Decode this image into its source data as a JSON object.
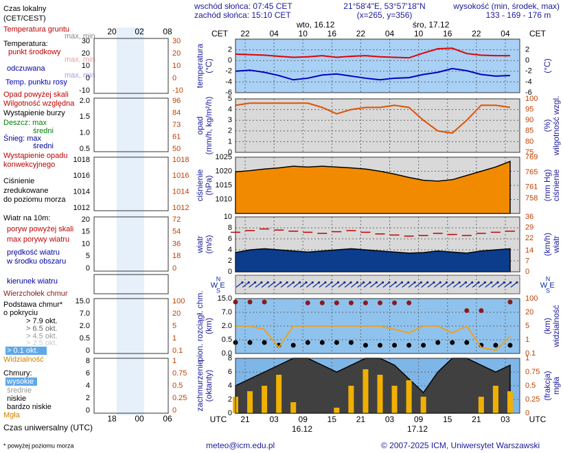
{
  "header": {
    "sunrise": "wschód słońca: 07:45 CET",
    "sunset": "zachód słońca: 15:10 CET",
    "coords": "21°58'4\"E, 53°57'18\"N",
    "grid": "(x=265, y=356)",
    "elevation_title": "wysokość (min, środek, max)",
    "elevation": "133 - 169 - 176 m",
    "cet": "CET",
    "utc": "UTC",
    "dates_top": [
      "wto, 16.12",
      "śro, 17.12"
    ],
    "dates_bottom": [
      "16.12",
      "17.12"
    ]
  },
  "compass": {
    "n": "N",
    "w": "W",
    "e": "E",
    "s": "S"
  },
  "legend": {
    "local_time": "Czas lokalny",
    "local_zone": "(CET/CEST)",
    "ground_temp": "Temperatura gruntu",
    "maxmin": "max, min",
    "temp": "Temperatura:",
    "feels": "odczuwana",
    "precip_over": "Opad powyżej skali",
    "storm": "Wystąpienie burzy",
    "rain_max": "Deszcz: max",
    "mean": "średni",
    "snow_max": "Śnieg: max",
    "conv1": "Wystąpienie opadu",
    "conv2": "konwekcyjnego",
    "press2": "zredukowane",
    "press3": "do poziomu morza",
    "wind": "Wiatr na 10m:",
    "gust_over": "poryw powyżej skali",
    "wind_mid": "w środku obszaru",
    "wind_dir": "kierunek wiatru",
    "base1": "Podstawa chmur*",
    "base2": "o pokryciu",
    "okt65": "> 6.5 okt.",
    "okt45": "> 4.5 okt.",
    "okt25": "> 2.5 okt.",
    "okt01": "> 0.1 okt.",
    "clouds": "Chmury:",
    "high": "wysokie",
    "mid": "średnie",
    "vlow": "bardzo niskie",
    "utc_time": "Czas uniwersalny (UTC)",
    "note": "* powyżej poziomu morza"
  },
  "mini": {
    "top_ticks": [
      "20",
      "02",
      "08"
    ],
    "bottom_ticks": [
      "18",
      "00",
      "06"
    ],
    "panels": [
      {
        "left": [
          "30",
          "20",
          "10",
          "0",
          "-10"
        ],
        "right": [
          "30",
          "20",
          "10",
          "0",
          "-10"
        ]
      },
      {
        "left": [
          "2.0",
          "1.5",
          "1.0",
          "0.5"
        ],
        "right": [
          "96",
          "84",
          "73",
          "61",
          "50"
        ]
      },
      {
        "left": [
          "1018",
          "1016",
          "1014",
          "1012"
        ],
        "right": [
          "1018",
          "1016",
          "1014",
          "1012"
        ]
      },
      {
        "left": [
          "20",
          "15",
          "10",
          "5",
          "0"
        ],
        "right": [
          "72",
          "54",
          "36",
          "18",
          "0"
        ]
      },
      {
        "left": [
          "15.0",
          "7.0",
          "2.0",
          "0.5",
          "0"
        ],
        "right": [
          "100",
          "20",
          "5",
          "1",
          "0.1"
        ]
      },
      {
        "left": [
          "8",
          "6",
          "4",
          "2",
          "0"
        ],
        "right": [
          "1",
          "0.75",
          "0.5",
          "0.25",
          "0"
        ]
      }
    ]
  },
  "footer": {
    "email": "meteo@icm.edu.pl",
    "copyright": "© 2007-2025 ICM, Uniwersytet Warszawski"
  },
  "chart_data": [
    {
      "type": "line",
      "ylabel": [
        "temperatura",
        "(°C)"
      ],
      "y2label": [
        "(°C)"
      ],
      "background": "#a9d0f5",
      "x": [
        19,
        22,
        25,
        28,
        31,
        34,
        37,
        40,
        43,
        46,
        49,
        52,
        55,
        58,
        61,
        64,
        67,
        70,
        73,
        76
      ],
      "xlim": [
        19,
        78
      ],
      "xticks": [
        {
          "value": 21,
          "label": "22"
        },
        {
          "value": 27,
          "label": "04"
        },
        {
          "value": 33,
          "label": "10"
        },
        {
          "value": 39,
          "label": "16"
        },
        {
          "value": 45,
          "label": "22"
        },
        {
          "value": 51,
          "label": "04"
        },
        {
          "value": 57,
          "label": "10"
        },
        {
          "value": 63,
          "label": "16"
        },
        {
          "value": 69,
          "label": "22"
        },
        {
          "value": 75,
          "label": "04"
        }
      ],
      "ylim": [
        -6,
        4
      ],
      "yticks": [
        -6,
        -4,
        -2,
        0,
        2
      ],
      "grid": true,
      "series": [
        {
          "name": "punkt środkowy",
          "type": "line",
          "color": "#e00000",
          "values": [
            1.2,
            1.1,
            1.0,
            0.8,
            0.6,
            0.7,
            0.9,
            0.6,
            0.8,
            0.9,
            0.7,
            0.6,
            0.5,
            1.4,
            2.2,
            2.3,
            1.3,
            1.0,
            0.9,
            0.9
          ]
        },
        {
          "name": "Temp. punktu rosy",
          "type": "line",
          "color": "#0000c0",
          "values": [
            -2.0,
            -1.8,
            -2.2,
            -2.8,
            -3.6,
            -3.3,
            -2.7,
            -2.5,
            -2.9,
            -3.3,
            -3.6,
            -3.3,
            -3.2,
            -2.6,
            -2.2,
            -1.5,
            -1.9,
            -2.6,
            -2.9,
            -2.8
          ]
        }
      ]
    },
    {
      "type": "line",
      "ylabel": [
        "opad",
        "(mm/h, kg/m²/h)"
      ],
      "y2label": [
        "(%)",
        "wilgotność wzgl."
      ],
      "background": "#d9d9d9",
      "x": [
        19,
        22,
        25,
        28,
        31,
        34,
        37,
        40,
        43,
        46,
        49,
        52,
        55,
        58,
        61,
        64,
        67,
        70,
        73,
        76
      ],
      "xlim": [
        19,
        78
      ],
      "ylim": [
        0,
        5
      ],
      "yticks": [
        0,
        1,
        2,
        3,
        4,
        5
      ],
      "y2lim": [
        75,
        100
      ],
      "y2ticks": [
        75,
        80,
        85,
        90,
        95,
        100
      ],
      "grid": true,
      "series": [
        {
          "name": "Wilgotność względna",
          "type": "line",
          "axis": "y2",
          "color": "#e05000",
          "values": [
            97,
            98,
            98,
            98,
            98,
            98,
            96,
            93,
            95,
            96,
            96,
            97,
            96,
            90,
            85,
            84,
            90,
            97,
            97,
            96
          ]
        }
      ]
    },
    {
      "type": "area",
      "ylabel": [
        "ciśnienie",
        "(hPa)"
      ],
      "y2label": [
        "(mm Hg)",
        "ciśnienie"
      ],
      "background": "#d9d9d9",
      "x": [
        19,
        22,
        25,
        28,
        31,
        34,
        37,
        40,
        43,
        46,
        49,
        52,
        55,
        58,
        61,
        64,
        67,
        70,
        73,
        76
      ],
      "xlim": [
        19,
        78
      ],
      "ylim": [
        1005,
        1025
      ],
      "yticks": [
        1010,
        1015,
        1020,
        1025
      ],
      "y2lim": [
        754,
        769
      ],
      "y2ticks": [
        758,
        761,
        765,
        769
      ],
      "grid": true,
      "series": [
        {
          "name": "Ciśnienie",
          "type": "area",
          "color": "#f28a00",
          "values": [
            1019.8,
            1020.2,
            1020.8,
            1021.2,
            1021.8,
            1021.5,
            1021.8,
            1021.5,
            1021.2,
            1020.8,
            1020.0,
            1019.0,
            1017.8,
            1016.8,
            1016.5,
            1017.0,
            1018.5,
            1020.0,
            1021.5,
            1023.5
          ]
        }
      ]
    },
    {
      "type": "area",
      "ylabel": [
        "wiatr",
        "(m/s)"
      ],
      "y2label": [
        "(km/h)",
        "wiatr"
      ],
      "background": "#d9d9d9",
      "x": [
        19,
        22,
        25,
        28,
        31,
        34,
        37,
        40,
        43,
        46,
        49,
        52,
        55,
        58,
        61,
        64,
        67,
        70,
        73,
        76
      ],
      "xlim": [
        19,
        78
      ],
      "ylim": [
        0,
        10
      ],
      "yticks": [
        0,
        2,
        4,
        6,
        8,
        10
      ],
      "y2lim": [
        0,
        36
      ],
      "y2ticks": [
        0,
        7,
        14,
        22,
        29,
        36
      ],
      "grid": true,
      "series": [
        {
          "name": "prędkość wiatru",
          "type": "area",
          "color": "#0c3c8c",
          "values": [
            3.5,
            4.0,
            4.2,
            4.0,
            3.8,
            3.6,
            3.8,
            4.0,
            4.2,
            4.0,
            3.8,
            3.6,
            3.4,
            3.5,
            3.8,
            3.6,
            3.4,
            3.8,
            4.0,
            4.2
          ]
        },
        {
          "name": "max porywy wiatru",
          "type": "dash",
          "color": "#c00000",
          "values": [
            7.2,
            7.5,
            7.8,
            7.6,
            7.4,
            7.2,
            7.0,
            7.3,
            7.5,
            7.2,
            6.9,
            6.7,
            6.5,
            6.6,
            7.0,
            6.8,
            6.6,
            7.0,
            7.2,
            7.4
          ]
        }
      ]
    },
    {
      "type": "scatter",
      "ylabel": [
        "pion. rozciągł. chm.",
        "(km)"
      ],
      "y2label": [
        "(km)",
        "widzialność"
      ],
      "background": "#8fc3ee",
      "x": [
        19,
        22,
        25,
        28,
        31,
        34,
        37,
        40,
        43,
        46,
        49,
        52,
        55,
        58,
        61,
        64,
        67,
        70,
        73,
        76
      ],
      "xlim": [
        19,
        78
      ],
      "ylim": [
        0,
        15
      ],
      "yscale": "ticks",
      "yticks": [
        {
          "value": 0,
          "label": "0.0"
        },
        {
          "value": 0.5,
          "label": "0.5"
        },
        {
          "value": 2,
          "label": "2.0"
        },
        {
          "value": 7,
          "label": "7.0"
        },
        {
          "value": 15,
          "label": "15.0"
        }
      ],
      "y2lim": [
        0.1,
        100
      ],
      "y2scale": "ticks",
      "y2ticks": [
        0.1,
        1,
        5,
        20,
        100
      ],
      "grid": true,
      "series": [
        {
          "name": "Wierzchołek chmur",
          "type": "scatter",
          "color": "#8b1a1a",
          "values": [
            13,
            13,
            13,
            null,
            null,
            12.5,
            12.5,
            12.5,
            12.5,
            12.5,
            12.5,
            12.5,
            12.5,
            null,
            null,
            null,
            8,
            8,
            null,
            13
          ]
        },
        {
          "name": "> 7.9 okt.",
          "type": "scatter",
          "color": "#000000",
          "values": [
            0.4,
            0.4,
            0.4,
            0.3,
            0.3,
            0.4,
            0.4,
            0.4,
            0.4,
            0.3,
            0.3,
            0.3,
            0.3,
            0.3,
            0.4,
            0.4,
            0.4,
            0.3,
            0.3,
            0.3
          ]
        },
        {
          "name": "Widzialność",
          "type": "line",
          "axis": "y2",
          "color": "#f0a020",
          "values": [
            5,
            5,
            4,
            0.5,
            5,
            5,
            5,
            5,
            5,
            5,
            5,
            4,
            3,
            5,
            5,
            3,
            5,
            0.5,
            0.3,
            2
          ]
        }
      ]
    },
    {
      "type": "area",
      "ylabel": [
        "zachmurzenie",
        "(oktanty)"
      ],
      "y2label": [
        "(frakcja)",
        "mgła"
      ],
      "background": "#7fb6e8",
      "x": [
        19,
        22,
        25,
        28,
        31,
        34,
        37,
        40,
        43,
        46,
        49,
        52,
        55,
        58,
        61,
        64,
        67,
        70,
        73,
        76
      ],
      "xlim": [
        19,
        78
      ],
      "xticks": [
        {
          "value": 21,
          "label": "21"
        },
        {
          "value": 27,
          "label": "03"
        },
        {
          "value": 33,
          "label": "09"
        },
        {
          "value": 39,
          "label": "15"
        },
        {
          "value": 45,
          "label": "21"
        },
        {
          "value": 51,
          "label": "03"
        },
        {
          "value": 57,
          "label": "09"
        },
        {
          "value": 63,
          "label": "15"
        },
        {
          "value": 69,
          "label": "21"
        },
        {
          "value": 75,
          "label": "03"
        }
      ],
      "ylim": [
        0,
        8
      ],
      "yticks": [
        0,
        2,
        4,
        6,
        8
      ],
      "y2lim": [
        0,
        1
      ],
      "y2ticks": [
        0,
        0.25,
        0.5,
        0.75,
        1
      ],
      "grid": true,
      "series": [
        {
          "name": "niskie",
          "type": "area",
          "color": "#404040",
          "values": [
            4,
            5,
            6,
            7,
            8,
            8,
            7,
            6,
            7,
            8,
            8,
            7,
            5,
            3,
            6,
            8,
            8,
            7,
            6,
            7
          ]
        },
        {
          "name": "Mgła",
          "type": "bar",
          "axis": "y2",
          "color": "#f0b000",
          "values": [
            0.3,
            0.4,
            0.5,
            0.7,
            0.2,
            0,
            0,
            0.1,
            0.5,
            0.8,
            0.7,
            0.5,
            0.6,
            0.3,
            0,
            0,
            0,
            0.3,
            0.5,
            0.4
          ]
        }
      ]
    }
  ]
}
